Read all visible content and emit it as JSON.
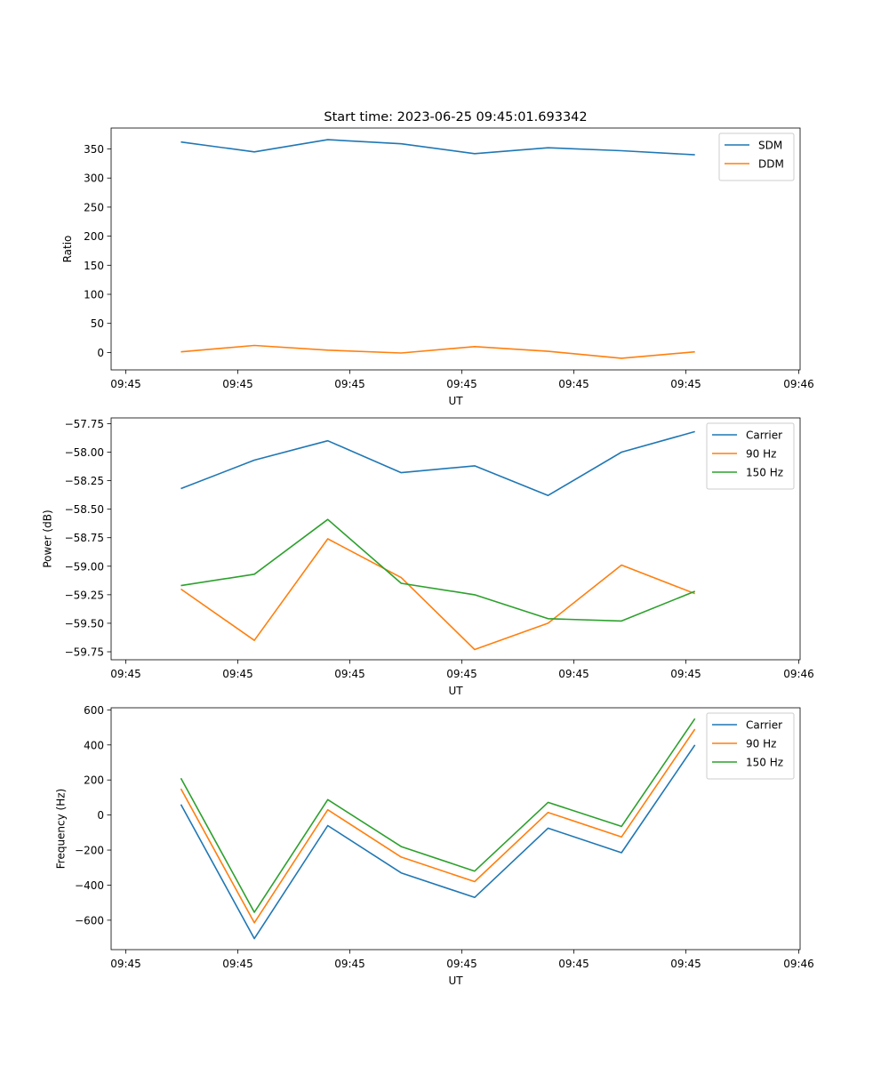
{
  "figure": {
    "title": "Start time: 2023-06-25 09:45:01.693342"
  },
  "chart_data": [
    {
      "type": "line",
      "xlabel": "UT",
      "ylabel": "Ratio",
      "x_tick_labels": [
        "09:45",
        "09:45",
        "09:45",
        "09:45",
        "09:45",
        "09:45",
        "09:46"
      ],
      "y_ticks": [
        0,
        50,
        100,
        150,
        200,
        250,
        300,
        350
      ],
      "ylim": [
        -30,
        386
      ],
      "legend_position": "top-right",
      "grid": false,
      "series": [
        {
          "name": "SDM",
          "color": "#1f77b4",
          "values": [
            362,
            345,
            366,
            359,
            342,
            352,
            347,
            340
          ]
        },
        {
          "name": "DDM",
          "color": "#ff7f0e",
          "values": [
            1,
            12,
            4,
            -1,
            10,
            2,
            -10,
            1
          ]
        }
      ]
    },
    {
      "type": "line",
      "xlabel": "UT",
      "ylabel": "Power (dB)",
      "x_tick_labels": [
        "09:45",
        "09:45",
        "09:45",
        "09:45",
        "09:45",
        "09:45",
        "09:46"
      ],
      "y_ticks": [
        -57.75,
        -58.0,
        -58.25,
        -58.5,
        -58.75,
        -59.0,
        -59.25,
        -59.5,
        -59.75
      ],
      "y_tick_labels": [
        "−57.75",
        "−58.00",
        "−58.25",
        "−58.50",
        "−58.75",
        "−59.00",
        "−59.25",
        "−59.50",
        "−59.75"
      ],
      "ylim": [
        -59.82,
        -57.7
      ],
      "legend_position": "top-right",
      "grid": false,
      "series": [
        {
          "name": "Carrier",
          "color": "#1f77b4",
          "values": [
            -58.32,
            -58.07,
            -57.9,
            -58.18,
            -58.12,
            -58.38,
            -58.0,
            -57.82
          ]
        },
        {
          "name": "90 Hz",
          "color": "#ff7f0e",
          "values": [
            -59.2,
            -59.65,
            -58.76,
            -59.1,
            -59.73,
            -59.5,
            -58.99,
            -59.24
          ]
        },
        {
          "name": "150 Hz",
          "color": "#2ca02c",
          "values": [
            -59.17,
            -59.07,
            -58.59,
            -59.15,
            -59.25,
            -59.46,
            -59.48,
            -59.22
          ]
        }
      ]
    },
    {
      "type": "line",
      "xlabel": "UT",
      "ylabel": "Frequency (Hz)",
      "x_tick_labels": [
        "09:45",
        "09:45",
        "09:45",
        "09:45",
        "09:45",
        "09:45",
        "09:46"
      ],
      "y_ticks": [
        -600,
        -400,
        -200,
        0,
        200,
        400,
        600
      ],
      "y_tick_labels": [
        "−600",
        "−400",
        "−200",
        "0",
        "200",
        "400",
        "600"
      ],
      "ylim": [
        -768,
        612
      ],
      "legend_position": "top-right",
      "grid": false,
      "series": [
        {
          "name": "Carrier",
          "color": "#1f77b4",
          "values": [
            60,
            -705,
            -60,
            -330,
            -470,
            -75,
            -215,
            400
          ]
        },
        {
          "name": "90 Hz",
          "color": "#ff7f0e",
          "values": [
            150,
            -615,
            30,
            -240,
            -380,
            15,
            -125,
            490
          ]
        },
        {
          "name": "150 Hz",
          "color": "#2ca02c",
          "values": [
            210,
            -555,
            88,
            -180,
            -320,
            72,
            -65,
            550
          ]
        }
      ]
    }
  ]
}
